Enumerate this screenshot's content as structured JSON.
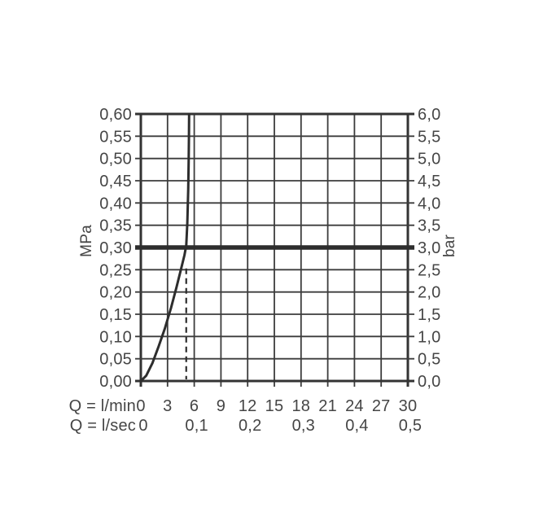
{
  "chart_data": {
    "type": "line",
    "title": "",
    "grid": true,
    "legend": null,
    "x_axis": {
      "row1_label": "Q = l/min",
      "row2_label": "Q = l/sec",
      "range": [
        0,
        30
      ],
      "grid_step": 3,
      "row1_ticks": [
        {
          "v": 0,
          "t": "0"
        },
        {
          "v": 3,
          "t": "3"
        },
        {
          "v": 6,
          "t": "6"
        },
        {
          "v": 9,
          "t": "9"
        },
        {
          "v": 12,
          "t": "12"
        },
        {
          "v": 15,
          "t": "15"
        },
        {
          "v": 18,
          "t": "18"
        },
        {
          "v": 21,
          "t": "21"
        },
        {
          "v": 24,
          "t": "24"
        },
        {
          "v": 27,
          "t": "27"
        },
        {
          "v": 30,
          "t": "30"
        }
      ],
      "row2_ticks": [
        {
          "v": 0,
          "t": "0"
        },
        {
          "v": 6,
          "t": "0,1"
        },
        {
          "v": 12,
          "t": "0,2"
        },
        {
          "v": 18,
          "t": "0,3"
        },
        {
          "v": 24,
          "t": "0,4"
        },
        {
          "v": 30,
          "t": "0,5"
        }
      ]
    },
    "y_axis_left": {
      "unit": "MPa",
      "range": [
        0,
        0.6
      ],
      "grid_step": 0.05,
      "ticks": [
        {
          "v": 0.6,
          "t": "0,60"
        },
        {
          "v": 0.55,
          "t": "0,55"
        },
        {
          "v": 0.5,
          "t": "0,50"
        },
        {
          "v": 0.45,
          "t": "0,45"
        },
        {
          "v": 0.4,
          "t": "0,40"
        },
        {
          "v": 0.35,
          "t": "0,35"
        },
        {
          "v": 0.3,
          "t": "0,30"
        },
        {
          "v": 0.25,
          "t": "0,25"
        },
        {
          "v": 0.2,
          "t": "0,20"
        },
        {
          "v": 0.15,
          "t": "0,15"
        },
        {
          "v": 0.1,
          "t": "0,10"
        },
        {
          "v": 0.05,
          "t": "0,05"
        },
        {
          "v": 0.0,
          "t": "0,00"
        }
      ]
    },
    "y_axis_right": {
      "unit": "bar",
      "ticks": [
        {
          "v": 0.6,
          "t": "6,0"
        },
        {
          "v": 0.55,
          "t": "5,5"
        },
        {
          "v": 0.5,
          "t": "5,0"
        },
        {
          "v": 0.45,
          "t": "4,5"
        },
        {
          "v": 0.4,
          "t": "4,0"
        },
        {
          "v": 0.35,
          "t": "3,5"
        },
        {
          "v": 0.3,
          "t": "3,0"
        },
        {
          "v": 0.25,
          "t": "2,5"
        },
        {
          "v": 0.2,
          "t": "2,0"
        },
        {
          "v": 0.15,
          "t": "1,5"
        },
        {
          "v": 0.1,
          "t": "1,0"
        },
        {
          "v": 0.05,
          "t": "0,5"
        },
        {
          "v": 0.0,
          "t": "0,0"
        }
      ]
    },
    "series": [
      {
        "name": "flow-curve",
        "type": "curve",
        "points_lmin_mpa": [
          [
            0,
            0
          ],
          [
            0.6,
            0.012
          ],
          [
            1.3,
            0.04
          ],
          [
            2.0,
            0.078
          ],
          [
            2.7,
            0.118
          ],
          [
            3.4,
            0.165
          ],
          [
            4.0,
            0.21
          ],
          [
            4.5,
            0.25
          ],
          [
            4.9,
            0.283
          ],
          [
            5.1,
            0.305
          ],
          [
            5.22,
            0.355
          ],
          [
            5.32,
            0.43
          ],
          [
            5.38,
            0.5
          ],
          [
            5.41,
            0.55
          ],
          [
            5.42,
            0.6
          ]
        ]
      },
      {
        "name": "pressure-reference-line-3bar",
        "type": "hline",
        "mpa": 0.3
      },
      {
        "name": "flow-reference-line-dashed",
        "type": "vline-dashed",
        "lmin": 5.1,
        "mpa_from": 0,
        "mpa_to": 0.253
      }
    ],
    "colors": {
      "background": "#ffffff",
      "grid": "#3c3c3c",
      "frame": "#333333",
      "curve": "#2d2d2d",
      "reference": "#2d2d2d",
      "text": "#454545"
    }
  }
}
